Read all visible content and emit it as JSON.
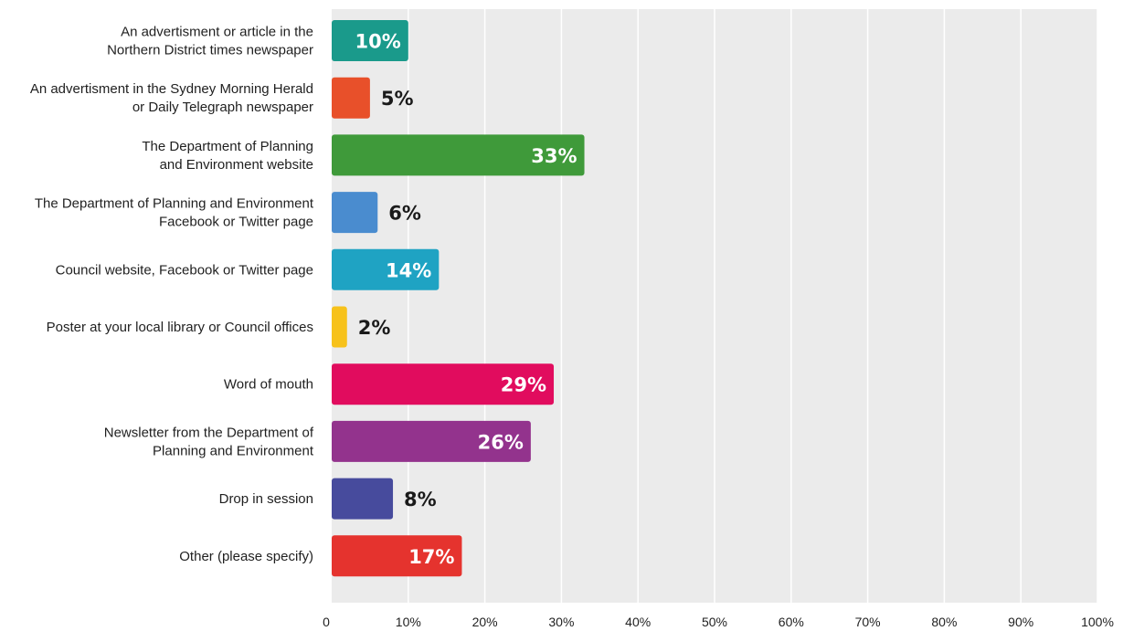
{
  "chart_data": {
    "type": "bar",
    "orientation": "horizontal",
    "title": "",
    "xlabel": "",
    "ylabel": "",
    "xlim": [
      0,
      100
    ],
    "grid": true,
    "legend": "none",
    "plot_background": "#ebebeb",
    "gridline_color": "#ffffff",
    "x_ticks": [
      0,
      10,
      20,
      30,
      40,
      50,
      60,
      70,
      80,
      90,
      100
    ],
    "x_tick_labels": [
      "0",
      "10%",
      "20%",
      "30%",
      "40%",
      "50%",
      "60%",
      "70%",
      "80%",
      "90%",
      "100%"
    ],
    "categories": [
      [
        "An advertisment or article in the",
        "Northern District times newspaper"
      ],
      [
        "An advertisment in the Sydney Morning Herald",
        "or Daily Telegraph newspaper"
      ],
      [
        "The Department of Planning",
        "and Environment website"
      ],
      [
        "The Department of Planning and Environment",
        "Facebook or Twitter page"
      ],
      [
        "Council website, Facebook or Twitter page"
      ],
      [
        "Poster at your local library or Council offices"
      ],
      [
        "Word of mouth"
      ],
      [
        "Newsletter from the Department of",
        "Planning and Environment"
      ],
      [
        "Drop in session"
      ],
      [
        "Other (please specify)"
      ]
    ],
    "values": [
      10,
      5,
      33,
      6,
      14,
      2,
      29,
      26,
      8,
      17
    ],
    "data_labels": [
      "10%",
      "5%",
      "33%",
      "6%",
      "14%",
      "2%",
      "29%",
      "26%",
      "8%",
      "17%"
    ],
    "colors": [
      "#1a9a8b",
      "#e8502a",
      "#3f9a3a",
      "#4a8ccf",
      "#1fa3c3",
      "#f7c21b",
      "#e10c5e",
      "#93338d",
      "#474b9d",
      "#e5332e"
    ]
  }
}
